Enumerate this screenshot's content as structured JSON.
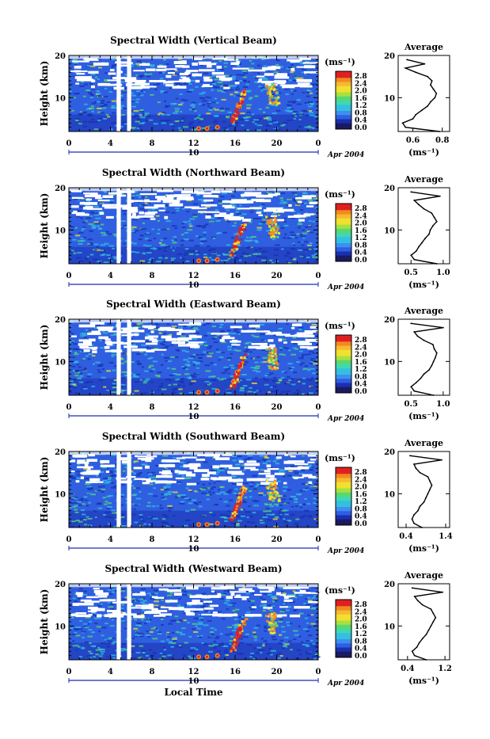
{
  "figure": {
    "time_axis_title": "Local Time",
    "y_axis_label": "Height (km)",
    "date_label": "Apr 2004",
    "day_label": "10",
    "x_ticks": [
      "0",
      "4",
      "8",
      "12",
      "16",
      "20",
      "0"
    ],
    "y_ticks": [
      "20",
      "10"
    ],
    "colorbar_unit_label": "(ms⁻¹)",
    "colorbar_ticks": [
      "2.8",
      "2.4",
      "2.0",
      "1.6",
      "1.2",
      "0.8",
      "0.4",
      "0.0"
    ],
    "colors": {
      "deep_blue": "#1a2fb0",
      "blue": "#2f5fe0",
      "cyan": "#33c0e0",
      "green": "#58d870",
      "yellow": "#f0e030",
      "orange": "#f08a20",
      "red": "#e02020"
    }
  },
  "chart_data": [
    {
      "type": "heatmap",
      "title": "Spectral Width (Vertical Beam)",
      "xlabel": "",
      "ylabel": "Height (km)",
      "xlim": [
        0,
        24
      ],
      "ylim": [
        2,
        20
      ],
      "colorbar": {
        "label": "(ms⁻¹)",
        "range": [
          0.0,
          2.8
        ]
      },
      "data_gaps_hours": [
        [
          4.6,
          5.0
        ],
        [
          5.6,
          6.0
        ]
      ],
      "average_profile": {
        "title": "Average",
        "xlabel": "(ms⁻¹)",
        "x_ticks": [
          "0.6",
          "0.8"
        ],
        "xlim": [
          0.5,
          0.85
        ],
        "height_km": [
          2,
          3,
          4,
          5,
          6,
          7,
          8,
          9,
          10,
          11,
          12,
          13,
          14,
          15,
          16,
          17,
          18,
          19
        ],
        "width": [
          0.78,
          0.55,
          0.53,
          0.6,
          0.62,
          0.66,
          0.7,
          0.72,
          0.75,
          0.76,
          0.74,
          0.72,
          0.73,
          0.7,
          0.62,
          0.55,
          0.68,
          0.56
        ]
      }
    },
    {
      "type": "heatmap",
      "title": "Spectral Width (Northward Beam)",
      "xlabel": "",
      "ylabel": "Height (km)",
      "xlim": [
        0,
        24
      ],
      "ylim": [
        2,
        20
      ],
      "colorbar": {
        "label": "(ms⁻¹)",
        "range": [
          0.0,
          2.8
        ]
      },
      "data_gaps_hours": [
        [
          4.6,
          5.0
        ],
        [
          5.6,
          6.0
        ]
      ],
      "average_profile": {
        "title": "Average",
        "xlabel": "(ms⁻¹)",
        "x_ticks": [
          "0.5",
          "1.0"
        ],
        "xlim": [
          0.3,
          1.1
        ],
        "height_km": [
          2,
          3,
          4,
          5,
          6,
          7,
          8,
          9,
          10,
          11,
          12,
          13,
          14,
          15,
          16,
          17,
          18,
          19
        ],
        "width": [
          0.9,
          0.55,
          0.5,
          0.58,
          0.62,
          0.67,
          0.72,
          0.78,
          0.8,
          0.84,
          0.9,
          0.86,
          0.82,
          0.7,
          0.62,
          0.55,
          0.95,
          0.5
        ]
      }
    },
    {
      "type": "heatmap",
      "title": "Spectral Width (Eastward Beam)",
      "xlabel": "",
      "ylabel": "Height (km)",
      "xlim": [
        0,
        24
      ],
      "ylim": [
        2,
        20
      ],
      "colorbar": {
        "label": "(ms⁻¹)",
        "range": [
          0.0,
          2.8
        ]
      },
      "data_gaps_hours": [
        [
          4.6,
          5.0
        ],
        [
          5.6,
          6.0
        ]
      ],
      "average_profile": {
        "title": "Average",
        "xlabel": "(ms⁻¹)",
        "x_ticks": [
          "0.5",
          "1.0"
        ],
        "xlim": [
          0.3,
          1.1
        ],
        "height_km": [
          2,
          3,
          4,
          5,
          6,
          7,
          8,
          9,
          10,
          11,
          12,
          13,
          14,
          15,
          16,
          17,
          18,
          19
        ],
        "width": [
          0.85,
          0.55,
          0.5,
          0.58,
          0.65,
          0.7,
          0.78,
          0.82,
          0.85,
          0.88,
          0.9,
          0.86,
          0.84,
          0.7,
          0.6,
          0.55,
          1.0,
          0.5
        ]
      }
    },
    {
      "type": "heatmap",
      "title": "Spectral Width (Southward Beam)",
      "xlabel": "",
      "ylabel": "Height (km)",
      "xlim": [
        0,
        24
      ],
      "ylim": [
        2,
        20
      ],
      "colorbar": {
        "label": "(ms⁻¹)",
        "range": [
          0.0,
          2.8
        ]
      },
      "data_gaps_hours": [
        [
          4.6,
          5.0
        ],
        [
          5.6,
          6.0
        ]
      ],
      "average_profile": {
        "title": "Average",
        "xlabel": "(ms⁻¹)",
        "x_ticks": [
          "0.4",
          "1.4"
        ],
        "xlim": [
          0.2,
          1.5
        ],
        "height_km": [
          2,
          3,
          4,
          5,
          6,
          7,
          8,
          9,
          10,
          11,
          12,
          13,
          14,
          15,
          16,
          17,
          18,
          19
        ],
        "width": [
          0.8,
          0.6,
          0.55,
          0.6,
          0.7,
          0.75,
          0.85,
          0.9,
          0.95,
          1.0,
          1.05,
          1.0,
          0.95,
          0.75,
          0.65,
          0.6,
          1.3,
          0.5
        ]
      }
    },
    {
      "type": "heatmap",
      "title": "Spectral Width (Westward Beam)",
      "xlabel": "Local Time",
      "ylabel": "Height (km)",
      "xlim": [
        0,
        24
      ],
      "ylim": [
        2,
        20
      ],
      "colorbar": {
        "label": "(ms⁻¹)",
        "range": [
          0.0,
          2.8
        ]
      },
      "data_gaps_hours": [
        [
          4.6,
          5.0
        ],
        [
          5.6,
          6.0
        ]
      ],
      "average_profile": {
        "title": "Average",
        "xlabel": "(ms⁻¹)",
        "x_ticks": [
          "0.4",
          "1.2"
        ],
        "xlim": [
          0.2,
          1.3
        ],
        "height_km": [
          2,
          3,
          4,
          5,
          6,
          7,
          8,
          9,
          10,
          11,
          12,
          13,
          14,
          15,
          16,
          17,
          18,
          19
        ],
        "width": [
          0.8,
          0.55,
          0.5,
          0.6,
          0.65,
          0.72,
          0.8,
          0.85,
          0.9,
          0.95,
          1.0,
          0.95,
          0.9,
          0.72,
          0.62,
          0.55,
          1.15,
          0.5
        ]
      }
    }
  ]
}
